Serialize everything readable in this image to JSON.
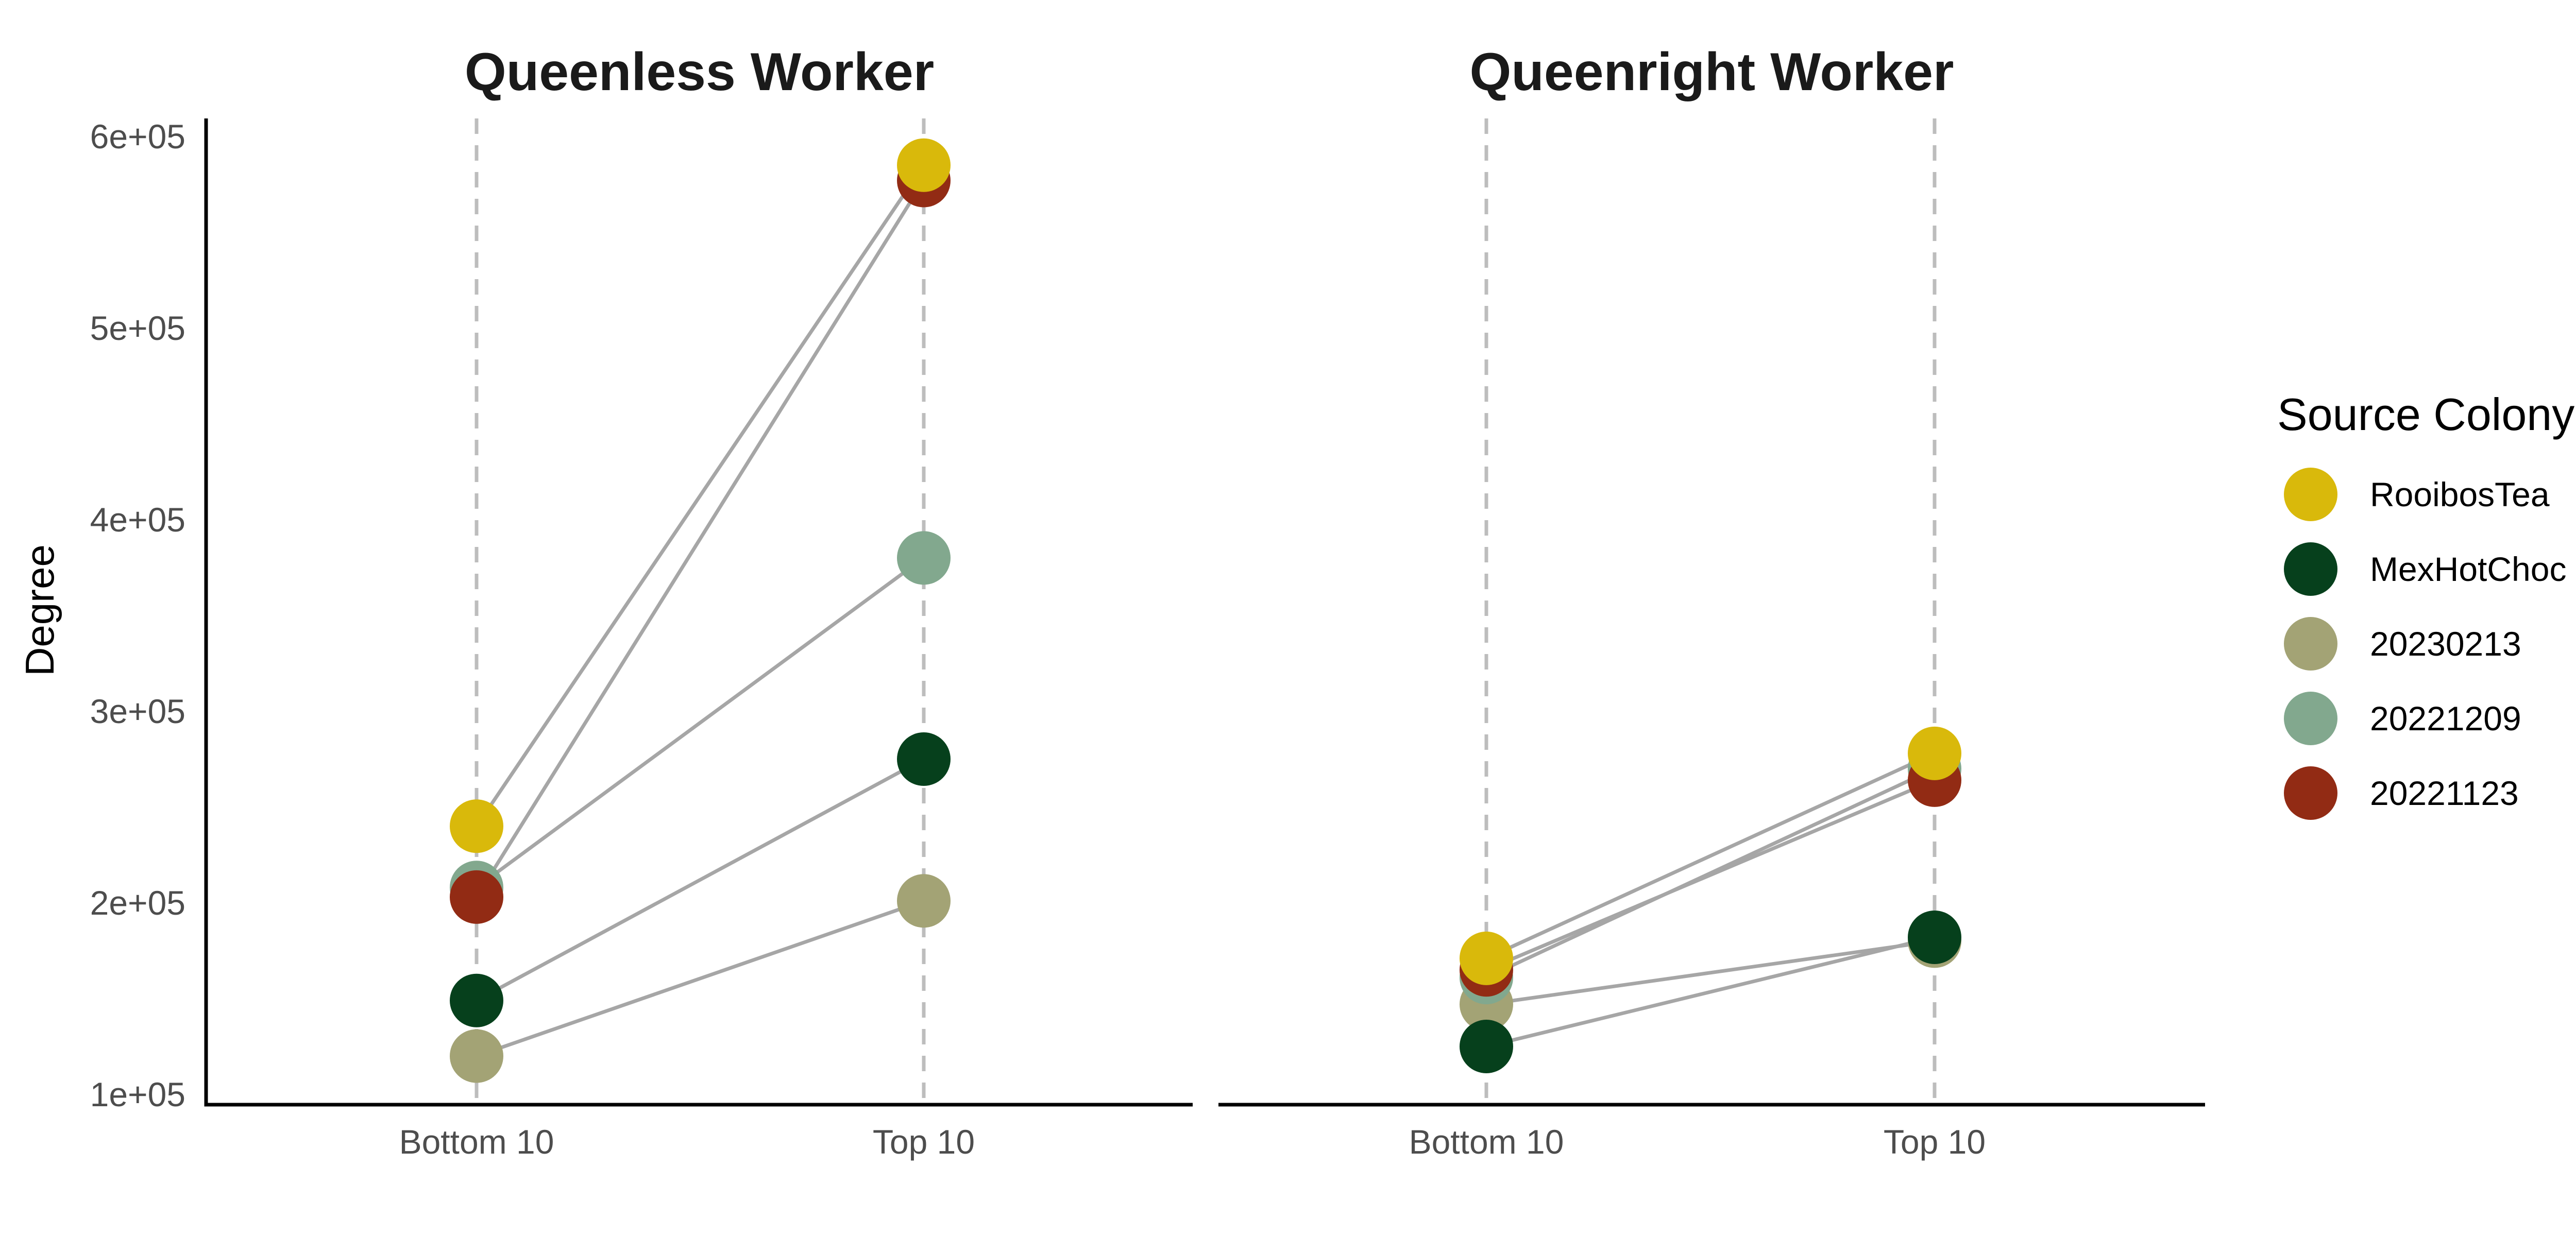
{
  "chart_data": {
    "type": "line",
    "ylabel": "Degree",
    "ylim": [
      100000,
      610000
    ],
    "yticks": [
      100000,
      200000,
      300000,
      400000,
      500000,
      600000
    ],
    "ytick_labels": [
      "1e+05",
      "2e+05",
      "3e+05",
      "4e+05",
      "5e+05",
      "6e+05"
    ],
    "categories": [
      "Bottom 10",
      "Top 10"
    ],
    "grid": "vertical dashed at categories",
    "legend": {
      "title": "Source Colony",
      "placement": "right",
      "entries": [
        {
          "name": "RooibosTea",
          "color": "#D9B90B"
        },
        {
          "name": "MexHotChoc",
          "color": "#06401C"
        },
        {
          "name": "20230213",
          "color": "#A3A375"
        },
        {
          "name": "20221209",
          "color": "#82A88E"
        },
        {
          "name": "20221123",
          "color": "#922B14"
        }
      ]
    },
    "line_color": "#A6A6A6",
    "panels": [
      {
        "title": "Queenless Worker",
        "series": [
          {
            "name": "20230213",
            "values": [
              120000,
              201000
            ]
          },
          {
            "name": "MexHotChoc",
            "values": [
              149000,
              275000
            ]
          },
          {
            "name": "20221209",
            "values": [
              208000,
              380000
            ]
          },
          {
            "name": "20221123",
            "values": [
              203000,
              577000
            ]
          },
          {
            "name": "RooibosTea",
            "values": [
              240000,
              585000
            ]
          }
        ]
      },
      {
        "title": "Queenright Worker",
        "series": [
          {
            "name": "20230213",
            "values": [
              147000,
              180000
            ]
          },
          {
            "name": "MexHotChoc",
            "values": [
              125000,
              182000
            ]
          },
          {
            "name": "20221209",
            "values": [
              161000,
              270000
            ]
          },
          {
            "name": "20221123",
            "values": [
              165000,
              264000
            ]
          },
          {
            "name": "RooibosTea",
            "values": [
              171000,
              278000
            ]
          }
        ]
      }
    ]
  }
}
